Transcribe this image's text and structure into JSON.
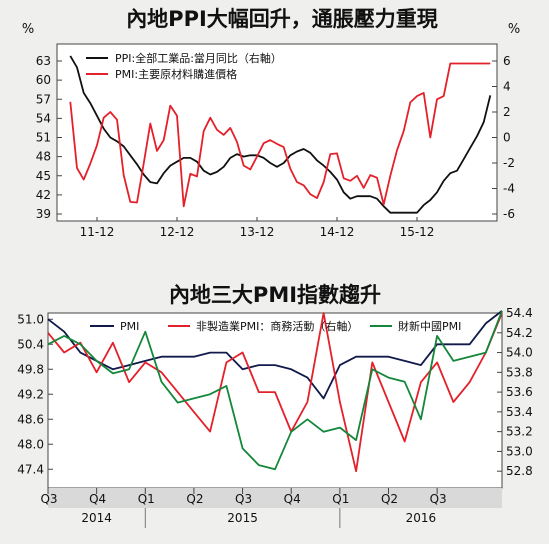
{
  "colors": {
    "black": "#111111",
    "red": "#e4202a",
    "green": "#14873a",
    "panel": "#ffffff",
    "background": "#efefed",
    "band": "#d9d9d9"
  },
  "chart_data": [
    {
      "type": "line",
      "title": "內地PPI大幅回升，通脹壓力重現",
      "left_unit": "%",
      "right_unit": "%",
      "x_tick_labels": [
        "11-12",
        "12-12",
        "13-12",
        "14-12",
        "15-12"
      ],
      "left_axis": {
        "ticks": [
          63,
          60,
          57,
          54,
          51,
          48,
          45,
          42,
          39
        ],
        "ylim": [
          39,
          63
        ]
      },
      "right_axis": {
        "ticks": [
          6,
          4,
          2,
          0,
          -2,
          -4,
          -6
        ],
        "ylim": [
          -6,
          6
        ]
      },
      "grid": false,
      "legend_position": "top-left",
      "series": [
        {
          "name": "PPI:全部工業品:當月同比（右軸）",
          "color": "#111111",
          "axis": "right",
          "x": [
            "2011-08",
            "2011-09",
            "2011-10",
            "2011-11",
            "2011-12",
            "2012-01",
            "2012-02",
            "2012-03",
            "2012-04",
            "2012-05",
            "2012-06",
            "2012-07",
            "2012-08",
            "2012-09",
            "2012-10",
            "2012-11",
            "2012-12",
            "2013-01",
            "2013-02",
            "2013-03",
            "2013-04",
            "2013-05",
            "2013-06",
            "2013-07",
            "2013-08",
            "2013-09",
            "2013-10",
            "2013-11",
            "2013-12",
            "2014-01",
            "2014-02",
            "2014-03",
            "2014-04",
            "2014-05",
            "2014-06",
            "2014-07",
            "2014-08",
            "2014-09",
            "2014-10",
            "2014-11",
            "2014-12",
            "2015-01",
            "2015-02",
            "2015-03",
            "2015-04",
            "2015-05",
            "2015-06",
            "2015-07",
            "2015-08",
            "2015-09",
            "2015-10",
            "2015-11",
            "2015-12",
            "2016-01",
            "2016-02",
            "2016-03",
            "2016-04",
            "2016-05",
            "2016-06",
            "2016-07",
            "2016-08",
            "2016-09",
            "2016-10",
            "2016-11"
          ],
          "values": [
            6.4,
            5.5,
            3.5,
            2.7,
            1.7,
            0.7,
            0.0,
            -0.3,
            -0.7,
            -1.4,
            -2.1,
            -2.9,
            -3.5,
            -3.6,
            -2.8,
            -2.2,
            -1.9,
            -1.6,
            -1.6,
            -1.9,
            -2.6,
            -2.9,
            -2.7,
            -2.3,
            -1.6,
            -1.3,
            -1.5,
            -1.4,
            -1.4,
            -1.6,
            -2.0,
            -2.3,
            -2.0,
            -1.4,
            -1.1,
            -0.9,
            -1.2,
            -1.8,
            -2.2,
            -2.7,
            -3.3,
            -4.3,
            -4.8,
            -4.6,
            -4.6,
            -4.6,
            -4.8,
            -5.4,
            -5.9,
            -5.9,
            -5.9,
            -5.9,
            -5.9,
            -5.3,
            -4.9,
            -4.3,
            -3.4,
            -2.8,
            -2.6,
            -1.7,
            -0.8,
            0.1,
            1.2,
            3.3
          ]
        },
        {
          "name": "PMI:主要原材料購進價格",
          "color": "#e4202a",
          "axis": "left",
          "x": [
            "2011-08",
            "2011-09",
            "2011-10",
            "2011-11",
            "2011-12",
            "2012-01",
            "2012-02",
            "2012-03",
            "2012-04",
            "2012-05",
            "2012-06",
            "2012-07",
            "2012-08",
            "2012-09",
            "2012-10",
            "2012-11",
            "2012-12",
            "2013-01",
            "2013-02",
            "2013-03",
            "2013-04",
            "2013-05",
            "2013-06",
            "2013-07",
            "2013-08",
            "2013-09",
            "2013-10",
            "2013-11",
            "2013-12",
            "2014-01",
            "2014-02",
            "2014-03",
            "2014-04",
            "2014-05",
            "2014-06",
            "2014-07",
            "2014-08",
            "2014-09",
            "2014-10",
            "2014-11",
            "2014-12",
            "2015-01",
            "2015-02",
            "2015-03",
            "2015-04",
            "2015-05",
            "2015-06",
            "2015-07",
            "2015-08",
            "2015-09",
            "2015-10",
            "2015-11",
            "2015-12",
            "2016-01",
            "2016-02",
            "2016-03",
            "2016-04",
            "2016-05",
            "2016-06",
            "2016-07",
            "2016-08",
            "2016-09",
            "2016-10",
            "2016-11"
          ],
          "values": [
            56.6,
            46.2,
            44.4,
            46.9,
            49.8,
            54.1,
            55.0,
            53.8,
            45.1,
            40.9,
            40.8,
            46.9,
            53.2,
            48.9,
            50.6,
            56.0,
            54.4,
            40.2,
            45.3,
            44.9,
            52.0,
            54.1,
            52.2,
            51.4,
            52.5,
            50.3,
            46.6,
            46.0,
            48.0,
            50.1,
            50.6,
            50.0,
            49.5,
            46.1,
            44.0,
            43.5,
            42.1,
            41.5,
            44.0,
            48.4,
            48.5,
            44.6,
            44.2,
            45.0,
            43.1,
            45.1,
            44.7,
            40.5,
            45.0,
            49.0,
            52.0,
            56.5,
            57.5,
            58.0,
            51.0,
            57.0,
            57.5,
            62.6,
            62.6,
            62.6,
            62.6,
            62.6,
            62.6,
            62.6
          ]
        }
      ]
    },
    {
      "type": "line",
      "title": "內地三大PMI指數趨升",
      "left_axis": {
        "ticks": [
          "51.0",
          "50.4",
          "49.8",
          "49.2",
          "48.6",
          "48.0",
          "47.4"
        ],
        "ylim": [
          46.95,
          51.15
        ]
      },
      "right_axis": {
        "ticks": [
          "54.4",
          "54.2",
          "54.0",
          "53.8",
          "53.6",
          "53.4",
          "53.2",
          "53.0",
          "52.8"
        ],
        "ylim": [
          52.63,
          54.4
        ]
      },
      "x_tick_labels": [
        "Q3",
        "Q4",
        "Q1",
        "Q2",
        "Q3",
        "Q4",
        "Q1",
        "Q2",
        "Q3"
      ],
      "year_labels": [
        "2014",
        "2015",
        "2016"
      ],
      "grid": false,
      "legend_position": "top",
      "series": [
        {
          "name": "PMI",
          "color": "#111a4a",
          "axis": "left",
          "x": [
            "2014-07",
            "2014-08",
            "2014-09",
            "2014-10",
            "2014-11",
            "2014-12",
            "2015-01",
            "2015-02",
            "2015-03",
            "2015-04",
            "2015-05",
            "2015-06",
            "2015-07",
            "2015-08",
            "2015-09",
            "2015-10",
            "2015-11",
            "2015-12",
            "2016-01",
            "2016-02",
            "2016-03",
            "2016-04",
            "2016-05",
            "2016-06",
            "2016-07",
            "2016-08",
            "2016-09",
            "2016-10",
            "2016-11"
          ],
          "values": [
            51.0,
            50.7,
            50.2,
            50.0,
            49.8,
            49.9,
            50.0,
            50.1,
            50.1,
            50.1,
            50.2,
            50.2,
            49.8,
            49.9,
            49.9,
            49.8,
            49.6,
            49.1,
            49.9,
            50.1,
            50.1,
            50.1,
            50.0,
            49.9,
            50.4,
            50.4,
            50.4,
            50.9,
            51.2
          ]
        },
        {
          "name": "非製造業PMI：商務活動（右軸）",
          "color": "#e4202a",
          "axis": "right",
          "x": [
            "2014-07",
            "2014-08",
            "2014-09",
            "2014-10",
            "2014-11",
            "2014-12",
            "2015-01",
            "2015-02",
            "2015-03",
            "2015-04",
            "2015-05",
            "2015-06",
            "2015-07",
            "2015-08",
            "2015-09",
            "2015-10",
            "2015-11",
            "2015-12",
            "2016-01",
            "2016-02",
            "2016-03",
            "2016-04",
            "2016-05",
            "2016-06",
            "2016-07",
            "2016-08",
            "2016-09",
            "2016-10",
            "2016-11"
          ],
          "values": [
            54.2,
            54.0,
            54.1,
            53.8,
            54.1,
            53.7,
            53.9,
            53.8,
            53.6,
            53.4,
            53.2,
            53.9,
            54.0,
            53.6,
            53.6,
            53.2,
            53.5,
            54.4,
            53.5,
            52.8,
            53.9,
            53.5,
            53.1,
            53.7,
            53.9,
            53.5,
            53.7,
            54.0,
            54.4
          ]
        },
        {
          "name": "財新中國PMI",
          "color": "#14873a",
          "axis": "left",
          "x": [
            "2014-07",
            "2014-08",
            "2014-09",
            "2014-10",
            "2014-11",
            "2014-12",
            "2015-01",
            "2015-02",
            "2015-03",
            "2015-04",
            "2015-05",
            "2015-06",
            "2015-07",
            "2015-08",
            "2015-09",
            "2015-10",
            "2015-11",
            "2015-12",
            "2016-01",
            "2016-02",
            "2016-03",
            "2016-04",
            "2016-05",
            "2016-06",
            "2016-07",
            "2016-08",
            "2016-09",
            "2016-10",
            "2016-11"
          ],
          "values": [
            50.4,
            50.6,
            50.4,
            50.0,
            49.7,
            49.8,
            50.7,
            49.5,
            49.0,
            49.1,
            49.2,
            49.4,
            47.9,
            47.5,
            47.4,
            48.3,
            48.6,
            48.3,
            48.4,
            48.1,
            49.8,
            49.6,
            49.5,
            48.6,
            50.6,
            50.0,
            50.1,
            50.2,
            51.2
          ]
        }
      ]
    }
  ]
}
